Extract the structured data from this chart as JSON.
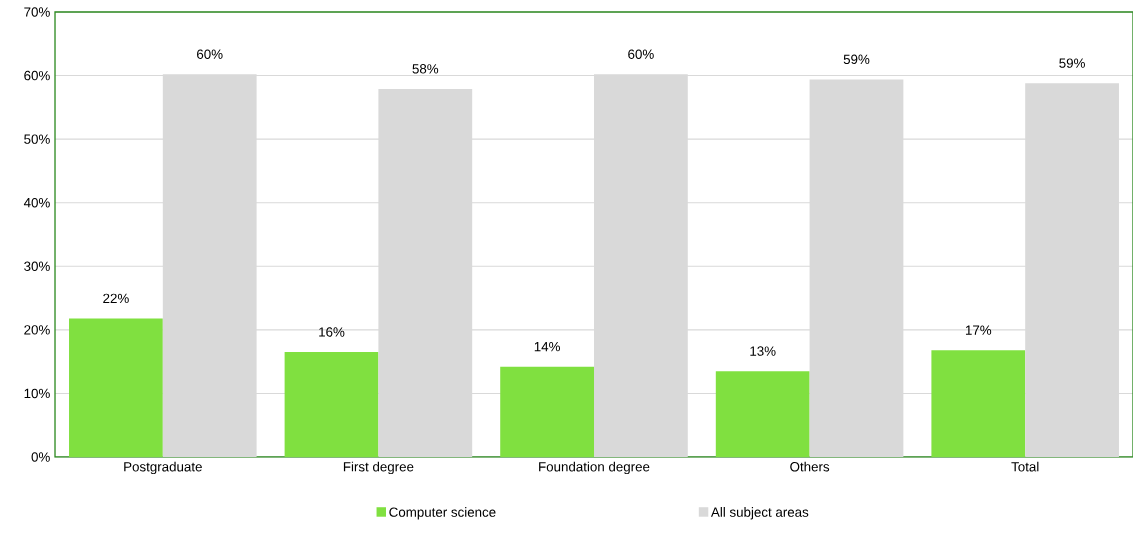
{
  "chart_data": {
    "type": "bar",
    "categories": [
      "Postgraduate",
      "First degree",
      "Foundation degree",
      "Others",
      "Total"
    ],
    "series": [
      {
        "name": "Computer science",
        "color": "#80e040",
        "values": [
          21.8,
          16.5,
          14.2,
          13.5,
          16.8
        ],
        "value_labels": [
          "22%",
          "16%",
          "14%",
          "13%",
          "17%"
        ]
      },
      {
        "name": "All subject areas",
        "color": "#d9d9d9",
        "values": [
          60.2,
          57.9,
          60.2,
          59.4,
          58.8
        ],
        "value_labels": [
          "60%",
          "58%",
          "60%",
          "59%",
          "59%"
        ]
      }
    ],
    "ylim": [
      0,
      70
    ],
    "yticks": [
      {
        "value": 0,
        "label": "0%"
      },
      {
        "value": 10,
        "label": "10%"
      },
      {
        "value": 20,
        "label": "20%"
      },
      {
        "value": 30,
        "label": "30%"
      },
      {
        "value": 40,
        "label": "40%"
      },
      {
        "value": 50,
        "label": "50%"
      },
      {
        "value": 60,
        "label": "60%"
      },
      {
        "value": 70,
        "label": "70%"
      }
    ],
    "grid": "y",
    "legend": "bottom"
  }
}
